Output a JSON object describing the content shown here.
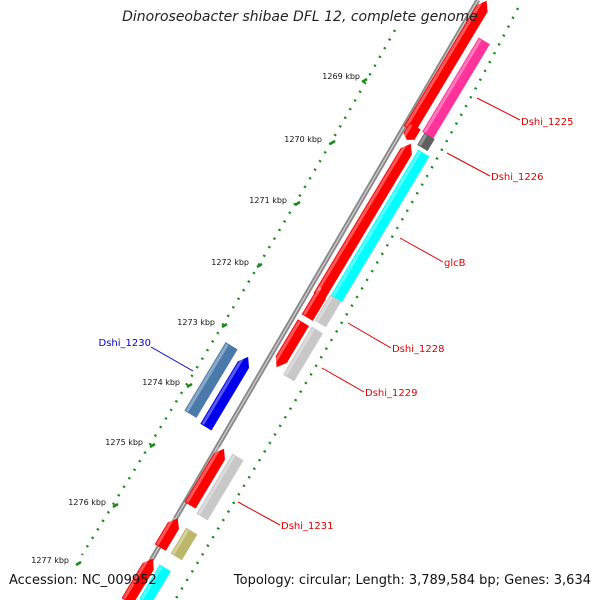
{
  "title": "Dinoroseobacter shibae DFL 12, complete genome",
  "accession": "Accession: NC_009952",
  "summary": "Topology: circular; Length: 3,789,584 bp; Genes: 3,634",
  "ticks": [
    {
      "label": "1269 kbp",
      "kbp": 1269
    },
    {
      "label": "1270 kbp",
      "kbp": 1270
    },
    {
      "label": "1271 kbp",
      "kbp": 1271
    },
    {
      "label": "1272 kbp",
      "kbp": 1272
    },
    {
      "label": "1273 kbp",
      "kbp": 1273
    },
    {
      "label": "1274 kbp",
      "kbp": 1274
    },
    {
      "label": "1275 kbp",
      "kbp": 1275
    },
    {
      "label": "1276 kbp",
      "kbp": 1276
    },
    {
      "label": "1277 kbp",
      "kbp": 1277
    }
  ],
  "gene_labels": [
    {
      "name": "Dshi_1225",
      "color": "#e00000"
    },
    {
      "name": "Dshi_1226",
      "color": "#e00000"
    },
    {
      "name": "glcB",
      "color": "#e00000"
    },
    {
      "name": "Dshi_1228",
      "color": "#e00000"
    },
    {
      "name": "Dshi_1229",
      "color": "#e00000"
    },
    {
      "name": "Dshi_1230",
      "color": "#0000cc"
    },
    {
      "name": "Dshi_1231",
      "color": "#e00000"
    }
  ],
  "colors": {
    "backbone": "#8a8a8a",
    "forward_cds": "#ff0000",
    "reverse_cds": "#0000ee",
    "reverse_feature": "#4a7aaa",
    "gc_skew_dots": "#1a8a1a",
    "cyan_feature": "#00ffff",
    "pink_feature": "#ff3399",
    "gray_feature": "#c8c8c8",
    "olive_feature": "#bdb76b"
  }
}
